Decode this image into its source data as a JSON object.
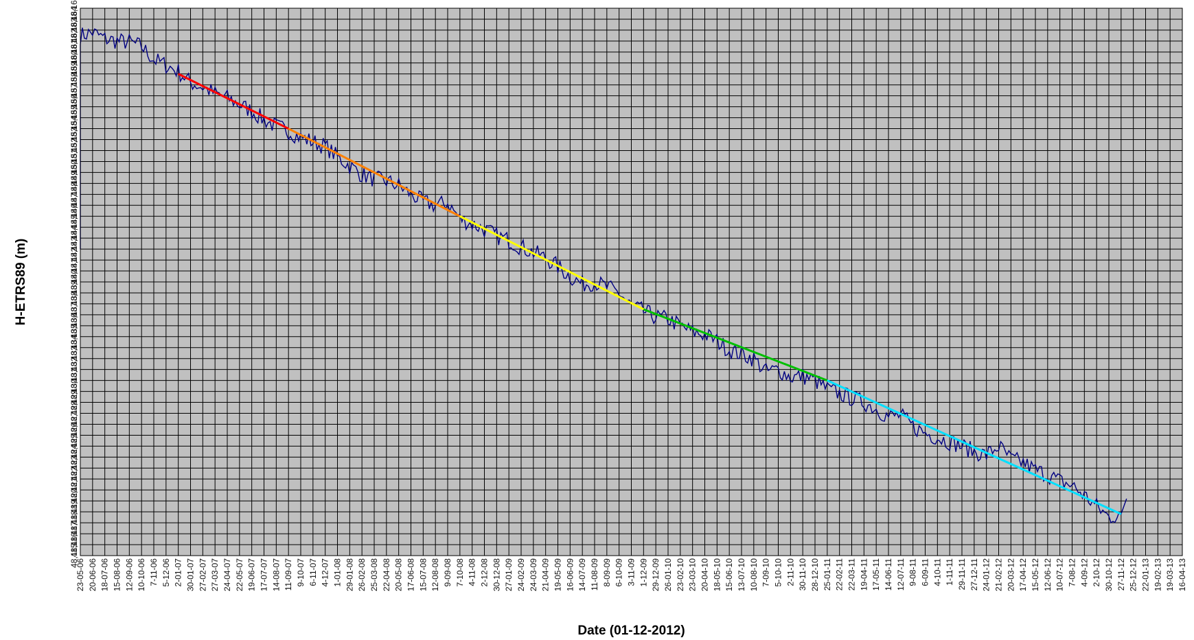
{
  "chart_data": {
    "type": "line",
    "title": "",
    "xlabel": "Date (01-12-2012)",
    "ylabel": "H-ETRS89 (m)",
    "ylim": [
      48.115,
      48.165
    ],
    "y_tick_step": 0.001,
    "y_tick_labels": [
      "48,115",
      "48,116",
      "48,117",
      "48,118",
      "48,119",
      "48,120",
      "48,121",
      "48,122",
      "48,123",
      "48,124",
      "48,125",
      "48,126",
      "48,127",
      "48,128",
      "48,129",
      "48,130",
      "48,131",
      "48,132",
      "48,133",
      "48,134",
      "48,135",
      "48,136",
      "48,137",
      "48,138",
      "48,139",
      "48,140",
      "48,141",
      "48,142",
      "48,143",
      "48,144",
      "48,145",
      "48,146",
      "48,147",
      "48,148",
      "48,149",
      "48,150",
      "48,151",
      "48,152",
      "48,153",
      "48,154",
      "48,155",
      "48,156",
      "48,157",
      "48,158",
      "48,159",
      "48,160",
      "48,161",
      "48,162",
      "48,163",
      "48,164",
      "48,165"
    ],
    "x_tick_labels": [
      "23-05-06",
      "20-06-06",
      "18-07-06",
      "15-08-06",
      "12-09-06",
      "10-10-06",
      "7-11-06",
      "5-12-06",
      "2-01-07",
      "30-01-07",
      "27-02-07",
      "27-03-07",
      "24-04-07",
      "22-05-07",
      "19-06-07",
      "17-07-07",
      "14-08-07",
      "11-09-07",
      "9-10-07",
      "6-11-07",
      "4-12-07",
      "1-01-08",
      "29-01-08",
      "26-02-08",
      "25-03-08",
      "22-04-08",
      "20-05-08",
      "17-06-08",
      "15-07-08",
      "12-08-08",
      "9-09-08",
      "7-10-08",
      "4-11-08",
      "2-12-08",
      "30-12-08",
      "27-01-09",
      "24-02-09",
      "24-03-09",
      "21-04-09",
      "19-05-09",
      "16-06-09",
      "14-07-09",
      "11-08-09",
      "8-09-09",
      "6-10-09",
      "3-11-09",
      "1-12-09",
      "29-12-09",
      "26-01-10",
      "23-02-10",
      "23-03-10",
      "20-04-10",
      "18-05-10",
      "15-06-10",
      "13-07-10",
      "10-08-10",
      "7-09-10",
      "5-10-10",
      "2-11-10",
      "30-11-10",
      "28-12-10",
      "25-01-11",
      "22-02-11",
      "22-03-11",
      "19-04-11",
      "17-05-11",
      "14-06-11",
      "12-07-11",
      "9-08-11",
      "6-09-11",
      "4-10-11",
      "1-11-11",
      "29-11-11",
      "27-12-11",
      "24-01-12",
      "21-02-12",
      "20-03-12",
      "17-04-12",
      "15-05-12",
      "12-06-12",
      "10-07-12",
      "7-08-12",
      "4-09-12",
      "2-10-12",
      "30-10-12",
      "27-11-12",
      "25-12-12",
      "22-01-13",
      "19-02-13",
      "19-03-13",
      "16-04-13"
    ],
    "grid": true,
    "background_color": "#c0c0c0",
    "series": [
      {
        "color": "#000080",
        "x_range": [
          "23-05-06",
          "03-12-12"
        ],
        "x": [
          "23-05-06",
          "20-06-06",
          "18-07-06",
          "15-08-06",
          "12-09-06",
          "10-10-06",
          "7-11-06",
          "5-12-06",
          "2-01-07",
          "30-01-07",
          "27-02-07",
          "27-03-07",
          "24-04-07",
          "22-05-07",
          "19-06-07",
          "17-07-07",
          "14-08-07",
          "11-09-07",
          "9-10-07",
          "6-11-07",
          "4-12-07",
          "1-01-08",
          "29-01-08",
          "26-02-08",
          "25-03-08",
          "22-04-08",
          "20-05-08",
          "17-06-08",
          "15-07-08",
          "12-08-08",
          "9-09-08",
          "7-10-08",
          "4-11-08",
          "2-12-08",
          "30-12-08",
          "27-01-09",
          "24-02-09",
          "24-03-09",
          "21-04-09",
          "19-05-09",
          "16-06-09",
          "14-07-09",
          "11-08-09",
          "8-09-09",
          "6-10-09",
          "3-11-09",
          "1-12-09",
          "29-12-09",
          "26-01-10",
          "23-02-10",
          "23-03-10",
          "20-04-10",
          "18-05-10",
          "15-06-10",
          "13-07-10",
          "10-08-10",
          "7-09-10",
          "5-10-10",
          "2-11-10",
          "30-11-10",
          "28-12-10",
          "25-01-11",
          "22-02-11",
          "22-03-11",
          "19-04-11",
          "17-05-11",
          "14-06-11",
          "12-07-11",
          "9-08-11",
          "6-09-11",
          "4-10-11",
          "1-11-11",
          "29-11-11",
          "27-12-11",
          "24-01-12",
          "21-02-12",
          "20-03-12",
          "17-04-12",
          "15-05-12",
          "12-06-12",
          "10-07-12",
          "7-08-12",
          "4-09-12",
          "2-10-12",
          "30-10-12",
          "27-11-12"
        ],
        "values": [
          48.1625,
          48.1628,
          48.1622,
          48.162,
          48.1619,
          48.1615,
          48.1603,
          48.1598,
          48.1592,
          48.1582,
          48.1578,
          48.1572,
          48.1568,
          48.1562,
          48.1556,
          48.1548,
          48.1542,
          48.1538,
          48.1532,
          48.1528,
          48.1524,
          48.1514,
          48.1506,
          48.1498,
          48.1494,
          48.1492,
          48.1488,
          48.148,
          48.1473,
          48.147,
          48.1472,
          48.1458,
          48.1453,
          48.1448,
          48.1442,
          48.1438,
          48.1432,
          48.1427,
          48.1422,
          48.1414,
          48.1405,
          48.1398,
          48.14,
          48.1395,
          48.139,
          48.1378,
          48.1373,
          48.1368,
          48.1366,
          48.136,
          48.1354,
          48.1352,
          48.1346,
          48.1338,
          48.1334,
          48.133,
          48.1318,
          48.132,
          48.1313,
          48.1314,
          48.131,
          48.1302,
          48.1298,
          48.1294,
          48.129,
          48.1284,
          48.1277,
          48.1278,
          48.1268,
          48.1262,
          48.1258,
          48.1254,
          48.125,
          48.1245,
          48.1242,
          48.125,
          48.1238,
          48.1235,
          48.1228,
          48.1224,
          48.1218,
          48.1214,
          48.1205,
          48.1195,
          48.1185,
          48.1188
        ]
      },
      {
        "type": "trend-segments",
        "segments": [
          {
            "color": "#ff0000",
            "x": [
              "2-01-07",
              "11-09-07"
            ],
            "values": [
              48.159,
              48.154
            ]
          },
          {
            "color": "#ff8000",
            "x": [
              "11-09-07",
              "7-10-08"
            ],
            "values": [
              48.154,
              48.146
            ]
          },
          {
            "color": "#ffff00",
            "x": [
              "7-10-08",
              "1-12-09"
            ],
            "values": [
              48.146,
              48.1375
            ]
          },
          {
            "color": "#00c000",
            "x": [
              "1-12-09",
              "25-01-11"
            ],
            "values": [
              48.1375,
              48.131
            ]
          },
          {
            "color": "#00e0ff",
            "x": [
              "25-01-11",
              "27-11-12"
            ],
            "values": [
              48.131,
              48.1188
            ]
          }
        ]
      }
    ]
  }
}
